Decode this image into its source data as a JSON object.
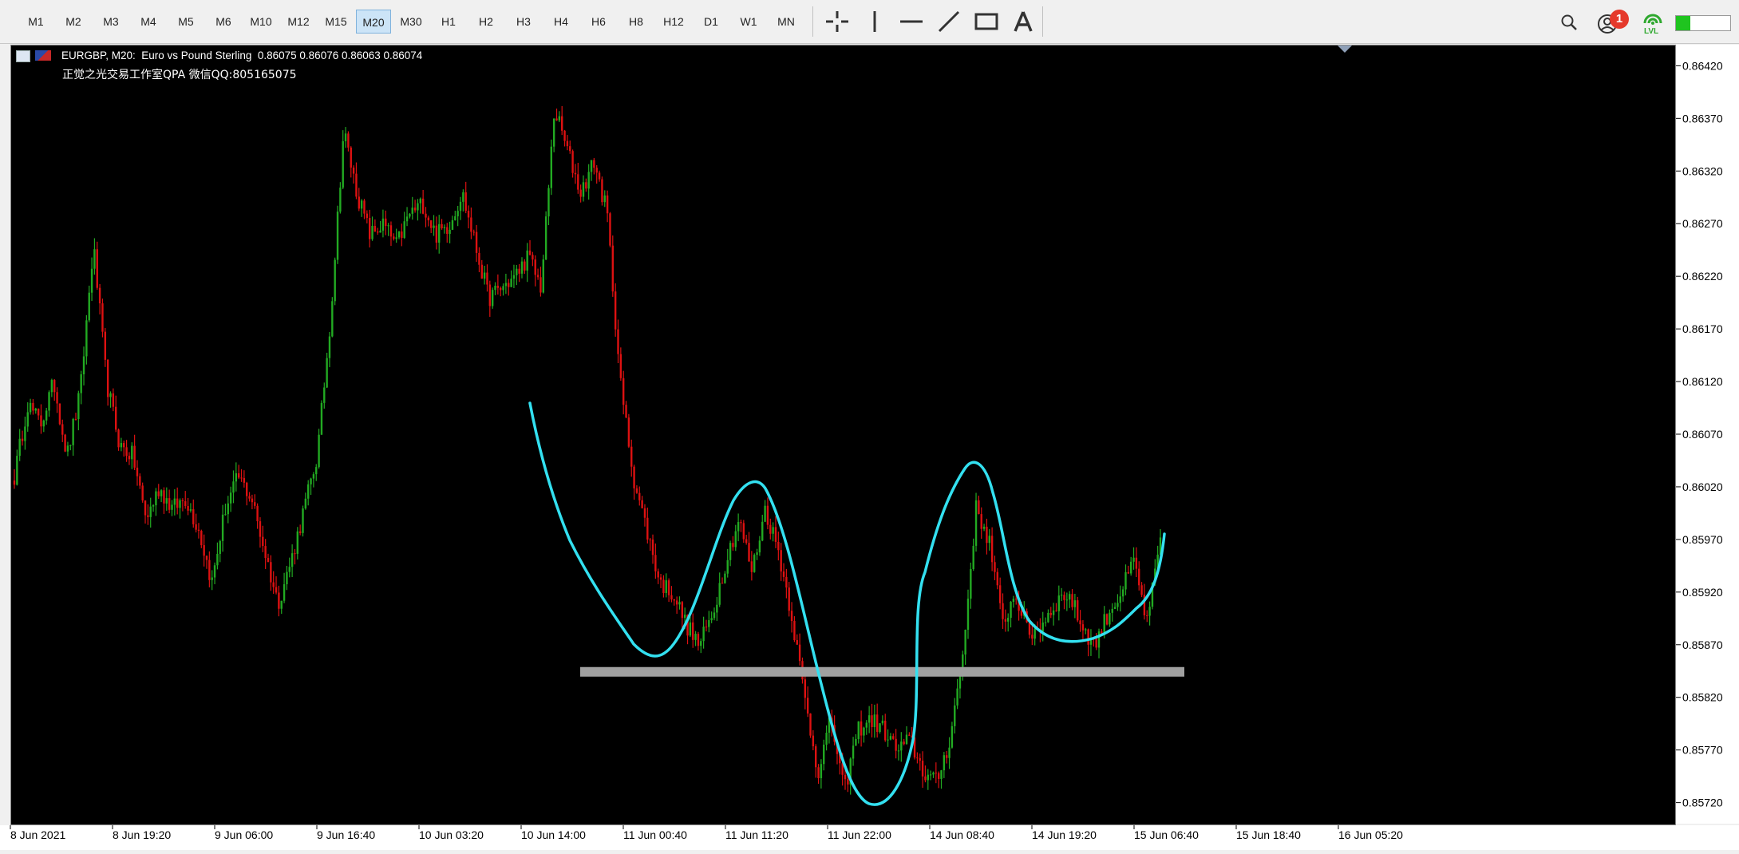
{
  "toolbar": {
    "timeframes": [
      "M1",
      "M2",
      "M3",
      "M4",
      "M5",
      "M6",
      "M10",
      "M12",
      "M15",
      "M20",
      "M30",
      "H1",
      "H2",
      "H3",
      "H4",
      "H6",
      "H8",
      "H12",
      "D1",
      "W1",
      "MN"
    ],
    "active_timeframe": "M20",
    "tools": [
      "crosshair-icon",
      "vertical-line-icon",
      "horizontal-line-icon",
      "trendline-icon",
      "rectangle-icon",
      "text-icon"
    ],
    "notification_count": "1",
    "lvl_label": "LVL"
  },
  "chart": {
    "symbol_line": "EURGBP, M20:  Euro vs Pound Sterling  0.86075 0.86076 0.86063 0.86074",
    "watermark_line": "正觉之光交易工作室QPA 微信QQ:805165075",
    "price_labels": [
      "0.86420",
      "0.86370",
      "0.86320",
      "0.86270",
      "0.86220",
      "0.86170",
      "0.86120",
      "0.86070",
      "0.86020",
      "0.85970",
      "0.85920",
      "0.85870",
      "0.85820",
      "0.85770",
      "0.85720"
    ],
    "time_labels": [
      "8 Jun 2021",
      "8 Jun 19:20",
      "9 Jun 06:00",
      "9 Jun 16:40",
      "10 Jun 03:20",
      "10 Jun 14:00",
      "11 Jun 00:40",
      "11 Jun 11:20",
      "11 Jun 22:00",
      "14 Jun 08:40",
      "14 Jun 19:20",
      "15 Jun 06:40",
      "15 Jun 18:40",
      "16 Jun 05:20"
    ],
    "colors": {
      "background": "#000000",
      "bull": "#22aa22",
      "bear": "#dd1111",
      "curve": "#33e0f0",
      "support": "#a0a0a0"
    }
  },
  "chart_data": {
    "type": "candlestick",
    "symbol": "EURGBP",
    "timeframe": "M20",
    "ylim": [
      0.857,
      0.8644
    ],
    "x_ticks": [
      "8 Jun 2021",
      "8 Jun 19:20",
      "9 Jun 06:00",
      "9 Jun 16:40",
      "10 Jun 03:20",
      "10 Jun 14:00",
      "11 Jun 00:40",
      "11 Jun 11:20",
      "11 Jun 22:00",
      "14 Jun 08:40",
      "14 Jun 19:20",
      "15 Jun 06:40",
      "15 Jun 18:40",
      "16 Jun 05:20"
    ],
    "y_ticks": [
      0.8642,
      0.8637,
      0.8632,
      0.8627,
      0.8622,
      0.8617,
      0.8612,
      0.8607,
      0.8602,
      0.8597,
      0.8592,
      0.8587,
      0.8582,
      0.8577,
      0.8572
    ],
    "close_trace": [
      0.8603,
      0.861,
      0.8608,
      0.8612,
      0.8605,
      0.8611,
      0.8625,
      0.8612,
      0.8606,
      0.8605,
      0.8599,
      0.8602,
      0.86,
      0.8601,
      0.8598,
      0.8593,
      0.86,
      0.8603,
      0.8601,
      0.8596,
      0.8591,
      0.8595,
      0.86,
      0.8605,
      0.8618,
      0.8636,
      0.863,
      0.8626,
      0.8627,
      0.8625,
      0.8628,
      0.8629,
      0.8626,
      0.8627,
      0.863,
      0.8625,
      0.862,
      0.8621,
      0.8622,
      0.8624,
      0.8621,
      0.8638,
      0.8634,
      0.863,
      0.8633,
      0.8628,
      0.8612,
      0.8603,
      0.8598,
      0.8593,
      0.8592,
      0.8589,
      0.8587,
      0.859,
      0.8595,
      0.8599,
      0.8594,
      0.86,
      0.8596,
      0.859,
      0.8582,
      0.8575,
      0.858,
      0.8573,
      0.8579,
      0.858,
      0.8579,
      0.8577,
      0.8578,
      0.8575,
      0.8574,
      0.8578,
      0.8586,
      0.86,
      0.8597,
      0.8589,
      0.8592,
      0.8588,
      0.8589,
      0.8591,
      0.8592,
      0.8589,
      0.8587,
      0.859,
      0.8592,
      0.8595,
      0.8589,
      0.8597
    ],
    "annotations": [
      {
        "type": "curve",
        "color": "#33e0f0",
        "description": "hand-drawn curve tracing price swings"
      },
      {
        "type": "horizontal-band",
        "color": "#a0a0a0",
        "price": 0.85845,
        "description": "support zone"
      }
    ]
  }
}
